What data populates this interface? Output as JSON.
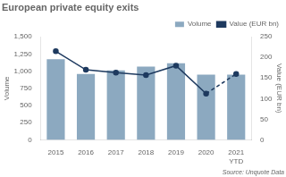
{
  "chart_data": {
    "type": "bar",
    "title": "European private equity exits",
    "categories": [
      "2015",
      "2016",
      "2017",
      "2018",
      "2019",
      "2020",
      "2021\nYTD"
    ],
    "series": [
      {
        "name": "Volume",
        "type": "bar",
        "color": "#8ca9c0",
        "values": [
          1175,
          960,
          1010,
          1065,
          1115,
          950,
          950
        ]
      },
      {
        "name": "Value (EUR bn)",
        "type": "line",
        "axis": "y2",
        "color": "#1e3a5f",
        "marker": "o",
        "values": [
          215,
          170,
          163,
          157,
          180,
          112,
          160
        ]
      }
    ],
    "ylabel": "Volume",
    "y2label": "Value (EUR bn)",
    "ylim": [
      0,
      1500
    ],
    "yticks": [
      0,
      250,
      500,
      750,
      {
        "value": 1000,
        "label": "1,000"
      },
      {
        "value": 1250,
        "label": "1,250"
      },
      {
        "value": 1500,
        "label": "1,500"
      }
    ],
    "y2lim": [
      0,
      250
    ],
    "y2ticks": [
      0,
      50,
      100,
      150,
      200,
      250
    ],
    "grid": false,
    "legend": "upper right",
    "annotations": [
      "Source: Unquote Data"
    ]
  }
}
